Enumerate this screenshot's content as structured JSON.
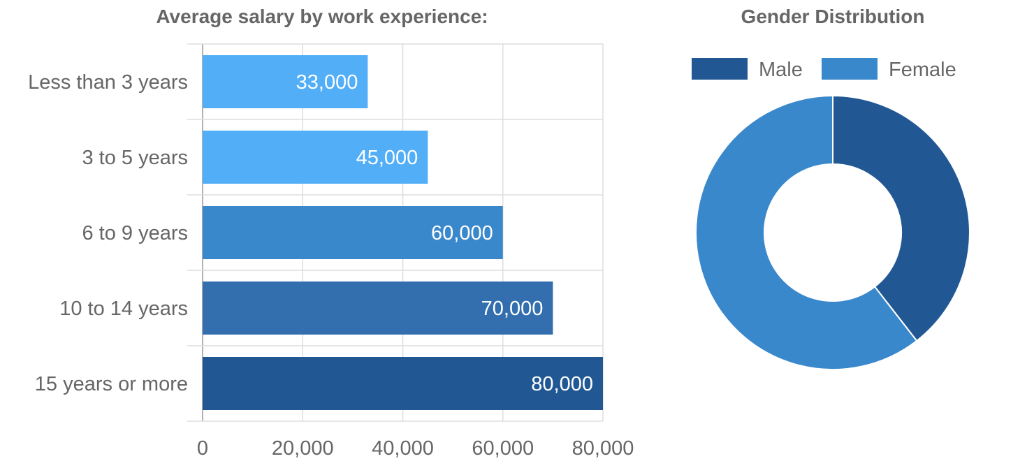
{
  "chart_data": [
    {
      "type": "bar",
      "orientation": "horizontal",
      "title": "Average salary by work experience:",
      "categories": [
        "Less than 3 years",
        "3 to 5 years",
        "6 to 9 years",
        "10 to 14 years",
        "15 years or more"
      ],
      "values": [
        33000,
        45000,
        60000,
        70000,
        80000
      ],
      "value_labels": [
        "33,000",
        "45,000",
        "60,000",
        "70,000",
        "80,000"
      ],
      "bar_colors": [
        "#52aef7",
        "#52aef7",
        "#3a88cc",
        "#336fae",
        "#215894"
      ],
      "xlim": [
        0,
        80000
      ],
      "xticks": [
        0,
        20000,
        40000,
        60000,
        80000
      ],
      "xtick_labels": [
        "0",
        "20,000",
        "40,000",
        "60,000",
        "80,000"
      ],
      "grid": true
    },
    {
      "type": "pie",
      "donut": true,
      "title": "Gender Distribution",
      "labels": [
        "Male",
        "Female"
      ],
      "values": [
        39.5,
        60.5
      ],
      "colors": [
        "#215894",
        "#3a88cc"
      ],
      "legend_position": "top"
    }
  ]
}
